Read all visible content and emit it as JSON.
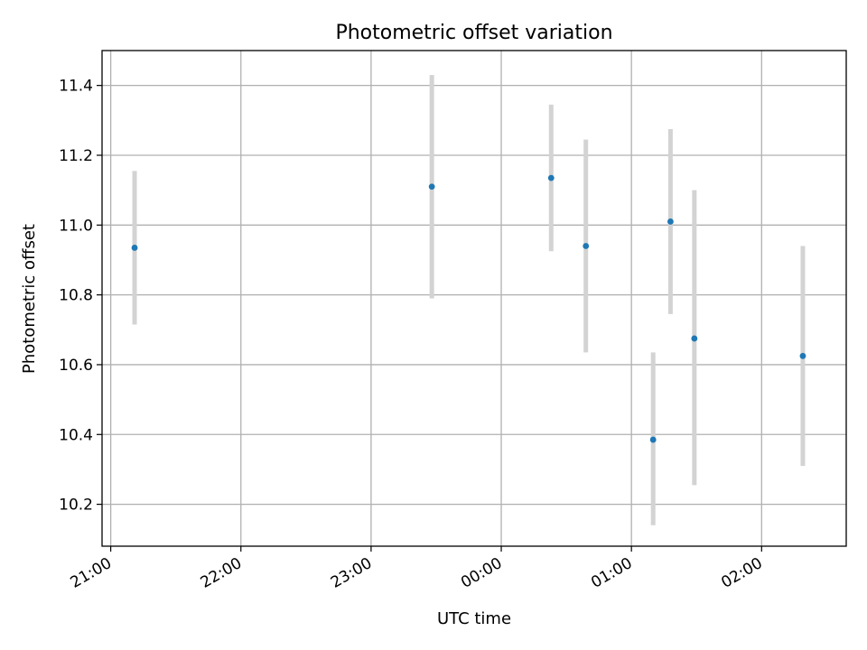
{
  "chart_data": {
    "type": "scatter",
    "title": "Photometric offset variation",
    "xlabel": "UTC time",
    "ylabel": "Photometric offset",
    "x_axis_type": "time",
    "xlim": [
      "20:56",
      "02:39"
    ],
    "ylim": [
      10.08,
      11.5
    ],
    "x_ticks": [
      "21:00",
      "22:00",
      "23:00",
      "00:00",
      "01:00",
      "02:00"
    ],
    "y_ticks": [
      10.2,
      10.4,
      10.6,
      10.8,
      11.0,
      11.2,
      11.4
    ],
    "grid": true,
    "marker_color": "#1f77b4",
    "errorbar_color": "#d3d3d3",
    "points": [
      {
        "time": "21:11",
        "value": 10.935,
        "err_low": 10.715,
        "err_high": 11.155
      },
      {
        "time": "23:28",
        "value": 11.11,
        "err_low": 10.79,
        "err_high": 11.43
      },
      {
        "time": "00:23",
        "value": 11.135,
        "err_low": 10.925,
        "err_high": 11.345
      },
      {
        "time": "00:39",
        "value": 10.94,
        "err_low": 10.635,
        "err_high": 11.245
      },
      {
        "time": "01:10",
        "value": 10.385,
        "err_low": 10.14,
        "err_high": 10.635
      },
      {
        "time": "01:18",
        "value": 11.01,
        "err_low": 10.745,
        "err_high": 11.275
      },
      {
        "time": "01:29",
        "value": 10.675,
        "err_low": 10.255,
        "err_high": 11.1
      },
      {
        "time": "02:19",
        "value": 10.625,
        "err_low": 10.31,
        "err_high": 10.94
      }
    ]
  }
}
